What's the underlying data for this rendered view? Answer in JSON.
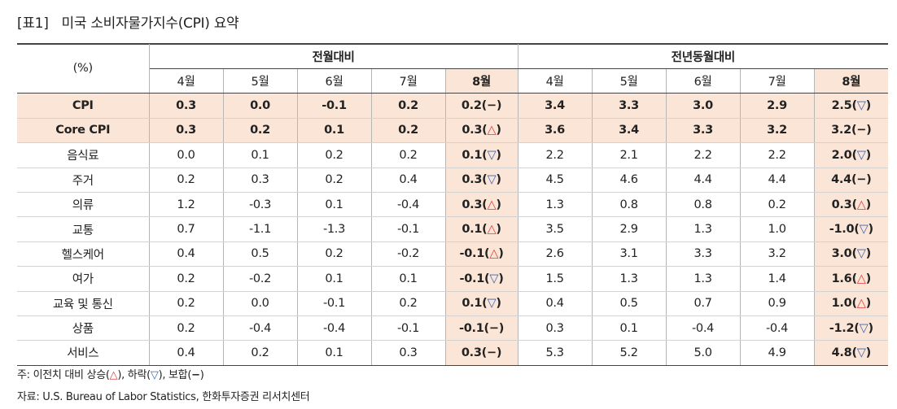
{
  "title": {
    "number": "[표1]",
    "text": "미국 소비자물가지수(CPI) 요약"
  },
  "header": {
    "unit": "(%)",
    "group_mom": "전월대비",
    "group_yoy": "전년동월대비",
    "months": [
      "4월",
      "5월",
      "6월",
      "7월",
      "8월"
    ]
  },
  "rows": [
    {
      "label": "CPI",
      "emph": true,
      "mom": [
        "0.3",
        "0.0",
        "-0.1",
        "0.2",
        "0.2"
      ],
      "mom_sym": "flat",
      "yoy": [
        "3.4",
        "3.3",
        "3.0",
        "2.9",
        "2.5"
      ],
      "yoy_sym": "down"
    },
    {
      "label": "Core CPI",
      "emph": true,
      "mom": [
        "0.3",
        "0.2",
        "0.1",
        "0.2",
        "0.3"
      ],
      "mom_sym": "up",
      "yoy": [
        "3.6",
        "3.4",
        "3.3",
        "3.2",
        "3.2"
      ],
      "yoy_sym": "flat"
    },
    {
      "label": "음식료",
      "emph": false,
      "mom": [
        "0.0",
        "0.1",
        "0.2",
        "0.2",
        "0.1"
      ],
      "mom_sym": "down",
      "yoy": [
        "2.2",
        "2.1",
        "2.2",
        "2.2",
        "2.0"
      ],
      "yoy_sym": "down"
    },
    {
      "label": "주거",
      "emph": false,
      "mom": [
        "0.2",
        "0.3",
        "0.2",
        "0.4",
        "0.3"
      ],
      "mom_sym": "down",
      "yoy": [
        "4.5",
        "4.6",
        "4.4",
        "4.4",
        "4.4"
      ],
      "yoy_sym": "flat"
    },
    {
      "label": "의류",
      "emph": false,
      "mom": [
        "1.2",
        "-0.3",
        "0.1",
        "-0.4",
        "0.3"
      ],
      "mom_sym": "up",
      "yoy": [
        "1.3",
        "0.8",
        "0.8",
        "0.2",
        "0.3"
      ],
      "yoy_sym": "up"
    },
    {
      "label": "교통",
      "emph": false,
      "mom": [
        "0.7",
        "-1.1",
        "-1.3",
        "-0.1",
        "0.1"
      ],
      "mom_sym": "up",
      "yoy": [
        "3.5",
        "2.9",
        "1.3",
        "1.0",
        "-1.0"
      ],
      "yoy_sym": "down"
    },
    {
      "label": "헬스케어",
      "emph": false,
      "mom": [
        "0.4",
        "0.5",
        "0.2",
        "-0.2",
        "-0.1"
      ],
      "mom_sym": "up",
      "yoy": [
        "2.6",
        "3.1",
        "3.3",
        "3.2",
        "3.0"
      ],
      "yoy_sym": "down"
    },
    {
      "label": "여가",
      "emph": false,
      "mom": [
        "0.2",
        "-0.2",
        "0.1",
        "0.1",
        "-0.1"
      ],
      "mom_sym": "down",
      "yoy": [
        "1.5",
        "1.3",
        "1.3",
        "1.4",
        "1.6"
      ],
      "yoy_sym": "up"
    },
    {
      "label": "교육 및 통신",
      "emph": false,
      "mom": [
        "0.2",
        "0.0",
        "-0.1",
        "0.2",
        "0.1"
      ],
      "mom_sym": "down",
      "yoy": [
        "0.4",
        "0.5",
        "0.7",
        "0.9",
        "1.0"
      ],
      "yoy_sym": "up"
    },
    {
      "label": "상품",
      "emph": false,
      "mom": [
        "0.2",
        "-0.4",
        "-0.4",
        "-0.1",
        "-0.1"
      ],
      "mom_sym": "flat",
      "yoy": [
        "0.3",
        "0.1",
        "-0.4",
        "-0.4",
        "-1.2"
      ],
      "yoy_sym": "down"
    },
    {
      "label": "서비스",
      "emph": false,
      "mom": [
        "0.4",
        "0.2",
        "0.1",
        "0.3",
        "0.3"
      ],
      "mom_sym": "flat",
      "yoy": [
        "5.3",
        "5.2",
        "5.0",
        "4.9",
        "4.8"
      ],
      "yoy_sym": "down"
    }
  ],
  "symbols": {
    "up": "△",
    "down": "▽",
    "flat": "−"
  },
  "colors": {
    "highlight": "#fbe5d6",
    "up": "#e03a3a",
    "down": "#3a64b4",
    "rule": "#444444"
  },
  "notes": {
    "note1_prefix": "주: 이전치 대비 상승(",
    "note1_mid1": "), 하락(",
    "note1_mid2": "), 보합(",
    "note1_suffix": ")",
    "source": "자료: U.S. Bureau of Labor Statistics, 한화투자증권 리서치센터"
  }
}
